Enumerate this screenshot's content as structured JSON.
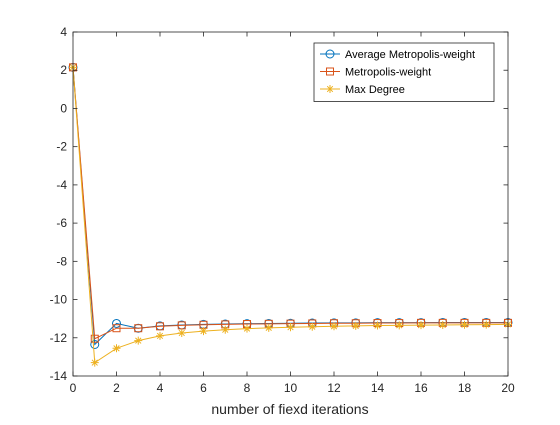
{
  "chart_data": {
    "type": "line",
    "title": "",
    "xlabel": "number of fiexd iterations",
    "ylabel": "",
    "xlim": [
      0,
      20
    ],
    "ylim": [
      -14,
      4
    ],
    "xticks": [
      "0",
      "2",
      "4",
      "6",
      "8",
      "10",
      "12",
      "14",
      "16",
      "18",
      "20"
    ],
    "yticks": [
      "4",
      "2",
      "0",
      "-2",
      "-4",
      "-6",
      "-8",
      "-10",
      "-12",
      "-14"
    ],
    "x": [
      0,
      1,
      2,
      3,
      4,
      5,
      6,
      7,
      8,
      9,
      10,
      11,
      12,
      13,
      14,
      15,
      16,
      17,
      18,
      19,
      20
    ],
    "legend_position": "top-right",
    "grid": false,
    "series": [
      {
        "name": "Average Metropolis-weight",
        "color": "#0072BD",
        "marker": "circle",
        "values": [
          2.15,
          -12.35,
          -11.25,
          -11.5,
          -11.38,
          -11.33,
          -11.3,
          -11.28,
          -11.26,
          -11.25,
          -11.24,
          -11.23,
          -11.22,
          -11.22,
          -11.21,
          -11.21,
          -11.21,
          -11.2,
          -11.2,
          -11.2,
          -11.2
        ]
      },
      {
        "name": "Metropolis-weight",
        "color": "#D95319",
        "marker": "square",
        "values": [
          2.15,
          -12.05,
          -11.5,
          -11.5,
          -11.4,
          -11.35,
          -11.32,
          -11.3,
          -11.28,
          -11.27,
          -11.26,
          -11.25,
          -11.24,
          -11.24,
          -11.23,
          -11.23,
          -11.22,
          -11.22,
          -11.22,
          -11.22,
          -11.22
        ]
      },
      {
        "name": "Max Degree",
        "color": "#EDB120",
        "marker": "asterisk",
        "values": [
          2.15,
          -13.3,
          -12.55,
          -12.15,
          -11.9,
          -11.75,
          -11.65,
          -11.58,
          -11.52,
          -11.48,
          -11.45,
          -11.42,
          -11.4,
          -11.38,
          -11.36,
          -11.35,
          -11.34,
          -11.33,
          -11.32,
          -11.31,
          -11.3
        ]
      }
    ]
  }
}
